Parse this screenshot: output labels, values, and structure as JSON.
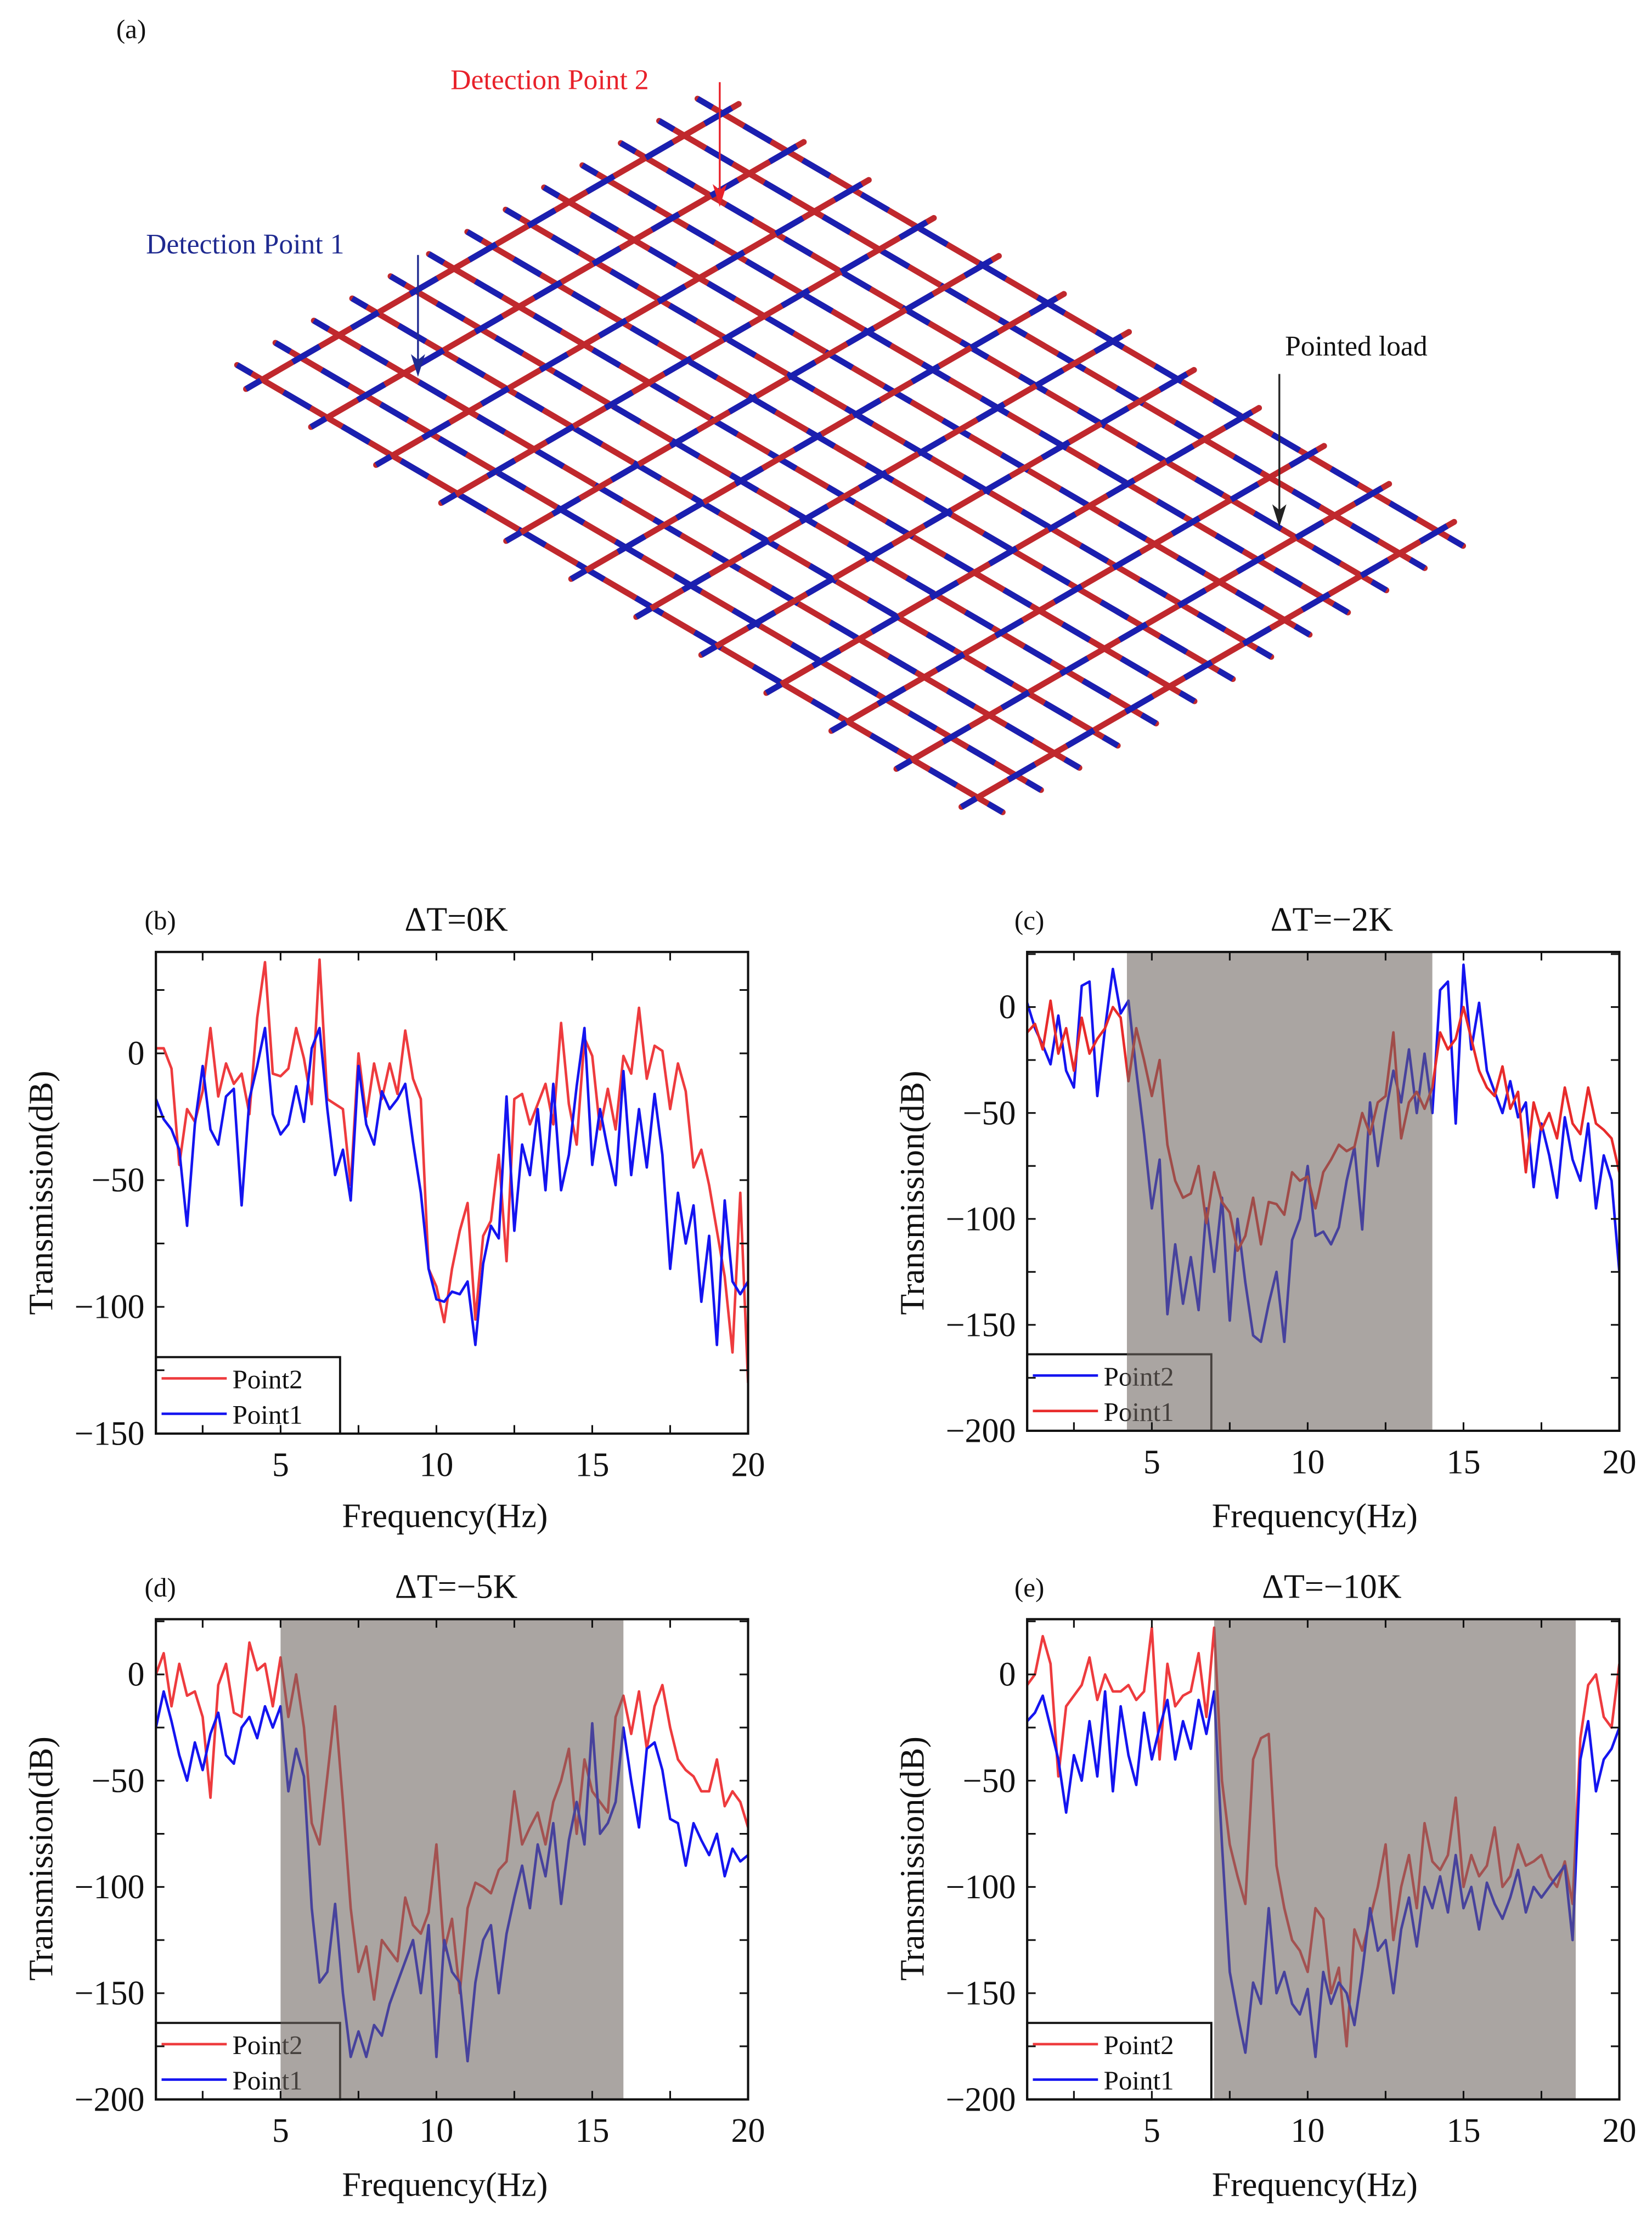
{
  "figure_a": {
    "label": "(a)",
    "detection_point_2": "Detection Point 2",
    "detection_point_1": "Detection Point 1",
    "pointed_load": "Pointed load",
    "colors": {
      "beam_red": "#c0282d",
      "beam_blue": "#1a1fb0",
      "dp2": "#e8212a",
      "dp1": "#1f2a90",
      "load": "#222222"
    }
  },
  "chart_data": [
    {
      "type": "line",
      "label": "(b)",
      "title": "ΔT=0K",
      "xlabel": "Frequency(Hz)",
      "ylabel": "Transmission(dB)",
      "xlim": [
        1,
        20
      ],
      "ylim": [
        -150,
        40
      ],
      "xticks": [
        5,
        10,
        15,
        20
      ],
      "xtick_labels": [
        "5",
        "10",
        "15",
        "20"
      ],
      "yticks": [
        0,
        -50,
        -100,
        -150
      ],
      "ytick_labels": [
        "0",
        "−50",
        "−100",
        "−150"
      ],
      "grid": false,
      "legend_placement": "bottom-left",
      "shaded_band": null,
      "series": [
        {
          "name": "Point2",
          "color": "#ee3b3e",
          "x_start": 1,
          "x_end": 20,
          "values": [
            2,
            2,
            -6,
            -44,
            -22,
            -27,
            -15,
            10,
            -17,
            -4,
            -12,
            -8,
            -24,
            14,
            36,
            -8,
            -9,
            -6,
            10,
            -2,
            -20,
            37,
            -18,
            -20,
            -22,
            -52,
            0,
            -25,
            -4,
            -18,
            -4,
            -16,
            9,
            -10,
            -18,
            -85,
            -92,
            -106,
            -85,
            -70,
            -59,
            -105,
            -72,
            -66,
            -40,
            -82,
            -18,
            -16,
            -28,
            -20,
            -12,
            -28,
            12,
            -20,
            -36,
            6,
            -1,
            -30,
            -14,
            -30,
            -1,
            -8,
            18,
            -10,
            3,
            1,
            -22,
            -4,
            -15,
            -45,
            -38,
            -52,
            -70,
            -88,
            -118,
            -55,
            -130
          ]
        },
        {
          "name": "Point1",
          "color": "#1414f0",
          "x_start": 1,
          "x_end": 20,
          "values": [
            -18,
            -26,
            -30,
            -38,
            -68,
            -28,
            -5,
            -30,
            -36,
            -17,
            -14,
            -60,
            -18,
            -5,
            10,
            -24,
            -32,
            -28,
            -13,
            -27,
            2,
            10,
            -22,
            -48,
            -38,
            -58,
            -5,
            -28,
            -36,
            -15,
            -22,
            -18,
            -12,
            -35,
            -55,
            -85,
            -97,
            -98,
            -94,
            -95,
            -90,
            -115,
            -83,
            -68,
            -73,
            -17,
            -70,
            -36,
            -48,
            -22,
            -54,
            -12,
            -54,
            -40,
            -13,
            10,
            -44,
            -22,
            -38,
            -52,
            -7,
            -48,
            -22,
            -45,
            -16,
            -40,
            -85,
            -55,
            -75,
            -60,
            -98,
            -72,
            -115,
            -58,
            -90,
            -95,
            -90
          ]
        }
      ]
    },
    {
      "type": "line",
      "label": "(c)",
      "title": "ΔT=−2K",
      "xlabel": "Frequency(Hz)",
      "ylabel": "Transmission(dB)",
      "xlim": [
        1,
        20
      ],
      "ylim": [
        -200,
        26
      ],
      "xticks": [
        5,
        10,
        15,
        20
      ],
      "xtick_labels": [
        "5",
        "10",
        "15",
        "20"
      ],
      "yticks": [
        0,
        -50,
        -100,
        -150,
        -200
      ],
      "ytick_labels": [
        "0",
        "−50",
        "−100",
        "−150",
        "−200"
      ],
      "grid": false,
      "legend_placement": "bottom-left",
      "shaded_band": [
        4.2,
        14.0
      ],
      "series": [
        {
          "name": "Point2",
          "color": "#1414f0",
          "x_start": 1,
          "x_end": 20,
          "values": [
            2,
            -10,
            -18,
            -27,
            -4,
            -30,
            -38,
            10,
            12,
            -42,
            -10,
            18,
            -3,
            3,
            -30,
            -60,
            -95,
            -72,
            -145,
            -112,
            -140,
            -118,
            -143,
            -95,
            -125,
            -90,
            -148,
            -100,
            -130,
            -155,
            -158,
            -140,
            -125,
            -158,
            -110,
            -100,
            -75,
            -108,
            -106,
            -112,
            -104,
            -82,
            -66,
            -105,
            -45,
            -75,
            -50,
            -30,
            -45,
            -20,
            -50,
            -22,
            -50,
            8,
            12,
            -55,
            20,
            -20,
            2,
            -30,
            -40,
            -50,
            -35,
            -52,
            -45,
            -85,
            -55,
            -70,
            -90,
            -52,
            -72,
            -82,
            -55,
            -95,
            -70,
            -82,
            -125
          ]
        },
        {
          "name": "Point1",
          "color": "#e82b2b",
          "x_start": 1,
          "x_end": 20,
          "values": [
            -12,
            -8,
            -20,
            3,
            -22,
            -10,
            -30,
            -5,
            -22,
            -15,
            -10,
            0,
            -5,
            -35,
            -10,
            -25,
            -42,
            -25,
            -65,
            -82,
            -90,
            -88,
            -75,
            -102,
            -78,
            -92,
            -97,
            -115,
            -108,
            -90,
            -112,
            -92,
            -93,
            -98,
            -78,
            -82,
            -80,
            -95,
            -78,
            -72,
            -65,
            -68,
            -66,
            -50,
            -60,
            -45,
            -42,
            -12,
            -62,
            -45,
            -40,
            -48,
            -38,
            -12,
            -20,
            -15,
            0,
            -15,
            -30,
            -38,
            -42,
            -28,
            -48,
            -40,
            -78,
            -45,
            -58,
            -50,
            -62,
            -38,
            -55,
            -60,
            -38,
            -55,
            -58,
            -62,
            -78
          ]
        }
      ]
    },
    {
      "type": "line",
      "label": "(d)",
      "title": "ΔT=−5K",
      "xlabel": "Frequency(Hz)",
      "ylabel": "Transmission(dB)",
      "xlim": [
        1,
        20
      ],
      "ylim": [
        -200,
        26
      ],
      "xticks": [
        5,
        10,
        15,
        20
      ],
      "xtick_labels": [
        "5",
        "10",
        "15",
        "20"
      ],
      "yticks": [
        0,
        -50,
        -100,
        -150,
        -200
      ],
      "ytick_labels": [
        "0",
        "−50",
        "−100",
        "−150",
        "−200"
      ],
      "grid": false,
      "legend_placement": "bottom-left",
      "shaded_band": [
        5.0,
        16.0
      ],
      "series": [
        {
          "name": "Point2",
          "color": "#ee3b3e",
          "x_start": 1,
          "x_end": 20,
          "values": [
            0,
            10,
            -15,
            5,
            -10,
            -8,
            -20,
            -58,
            -5,
            5,
            -18,
            -20,
            15,
            2,
            5,
            -15,
            8,
            -20,
            0,
            -25,
            -70,
            -80,
            -48,
            -15,
            -60,
            -110,
            -140,
            -128,
            -153,
            -125,
            -130,
            -135,
            -105,
            -118,
            -122,
            -112,
            -80,
            -130,
            -115,
            -150,
            -110,
            -98,
            -100,
            -103,
            -92,
            -88,
            -55,
            -80,
            -72,
            -65,
            -80,
            -60,
            -50,
            -35,
            -75,
            -40,
            -55,
            -60,
            -65,
            -20,
            -10,
            -28,
            -8,
            -35,
            -15,
            -5,
            -25,
            -40,
            -45,
            -48,
            -55,
            -55,
            -40,
            -62,
            -55,
            -60,
            -72
          ]
        },
        {
          "name": "Point1",
          "color": "#1414f0",
          "x_start": 1,
          "x_end": 20,
          "values": [
            -25,
            -8,
            -22,
            -38,
            -50,
            -32,
            -45,
            -28,
            -18,
            -38,
            -42,
            -25,
            -20,
            -30,
            -15,
            -25,
            -15,
            -55,
            -35,
            -48,
            -110,
            -145,
            -140,
            -108,
            -150,
            -180,
            -168,
            -180,
            -165,
            -170,
            -155,
            -145,
            -135,
            -125,
            -150,
            -118,
            -180,
            -125,
            -140,
            -145,
            -182,
            -145,
            -125,
            -118,
            -150,
            -122,
            -105,
            -90,
            -110,
            -80,
            -95,
            -70,
            -108,
            -78,
            -60,
            -80,
            -23,
            -75,
            -70,
            -60,
            -25,
            -50,
            -72,
            -35,
            -32,
            -45,
            -68,
            -70,
            -90,
            -70,
            -78,
            -85,
            -75,
            -95,
            -82,
            -88,
            -85
          ]
        }
      ]
    },
    {
      "type": "line",
      "label": "(e)",
      "title": "ΔT=−10K",
      "xlabel": "Frequency(Hz)",
      "ylabel": "Transmission(dB)",
      "xlim": [
        1,
        20
      ],
      "ylim": [
        -200,
        26
      ],
      "xticks": [
        5,
        10,
        15,
        20
      ],
      "xtick_labels": [
        "5",
        "10",
        "15",
        "20"
      ],
      "yticks": [
        0,
        -50,
        -100,
        -150,
        -200
      ],
      "ytick_labels": [
        "0",
        "−50",
        "−100",
        "−150",
        "−200"
      ],
      "grid": false,
      "legend_placement": "bottom-left",
      "shaded_band": [
        7.0,
        18.6
      ],
      "series": [
        {
          "name": "Point2",
          "color": "#ee3b3e",
          "x_start": 1,
          "x_end": 20,
          "values": [
            -5,
            0,
            18,
            5,
            -48,
            -15,
            -10,
            -5,
            8,
            -12,
            0,
            -8,
            -8,
            -5,
            -12,
            -8,
            22,
            -40,
            5,
            -15,
            -10,
            -8,
            10,
            -20,
            22,
            -50,
            -80,
            -95,
            -108,
            -40,
            -30,
            -28,
            -90,
            -110,
            -125,
            -130,
            -140,
            -110,
            -115,
            -150,
            -138,
            -175,
            -120,
            -130,
            -115,
            -100,
            -80,
            -125,
            -100,
            -85,
            -110,
            -70,
            -88,
            -92,
            -85,
            -58,
            -100,
            -85,
            -95,
            -90,
            -72,
            -100,
            -95,
            -80,
            -90,
            -88,
            -85,
            -95,
            -100,
            -88,
            -108,
            -30,
            -5,
            0,
            -20,
            -25,
            5
          ]
        },
        {
          "name": "Point1",
          "color": "#1414f0",
          "x_start": 1,
          "x_end": 20,
          "values": [
            -22,
            -18,
            -10,
            -25,
            -40,
            -65,
            -38,
            -50,
            -22,
            -48,
            -8,
            -55,
            -15,
            -38,
            -52,
            -18,
            -40,
            -25,
            -12,
            -40,
            -22,
            -35,
            -12,
            -28,
            -8,
            -80,
            -140,
            -160,
            -178,
            -145,
            -155,
            -110,
            -150,
            -140,
            -155,
            -160,
            -148,
            -180,
            -140,
            -155,
            -145,
            -150,
            -165,
            -140,
            -110,
            -130,
            -125,
            -150,
            -120,
            -105,
            -128,
            -100,
            -110,
            -95,
            -112,
            -85,
            -110,
            -100,
            -120,
            -98,
            -108,
            -115,
            -105,
            -92,
            -112,
            -100,
            -105,
            -100,
            -95,
            -90,
            -125,
            -40,
            -22,
            -55,
            -40,
            -35,
            -25
          ]
        }
      ]
    }
  ]
}
